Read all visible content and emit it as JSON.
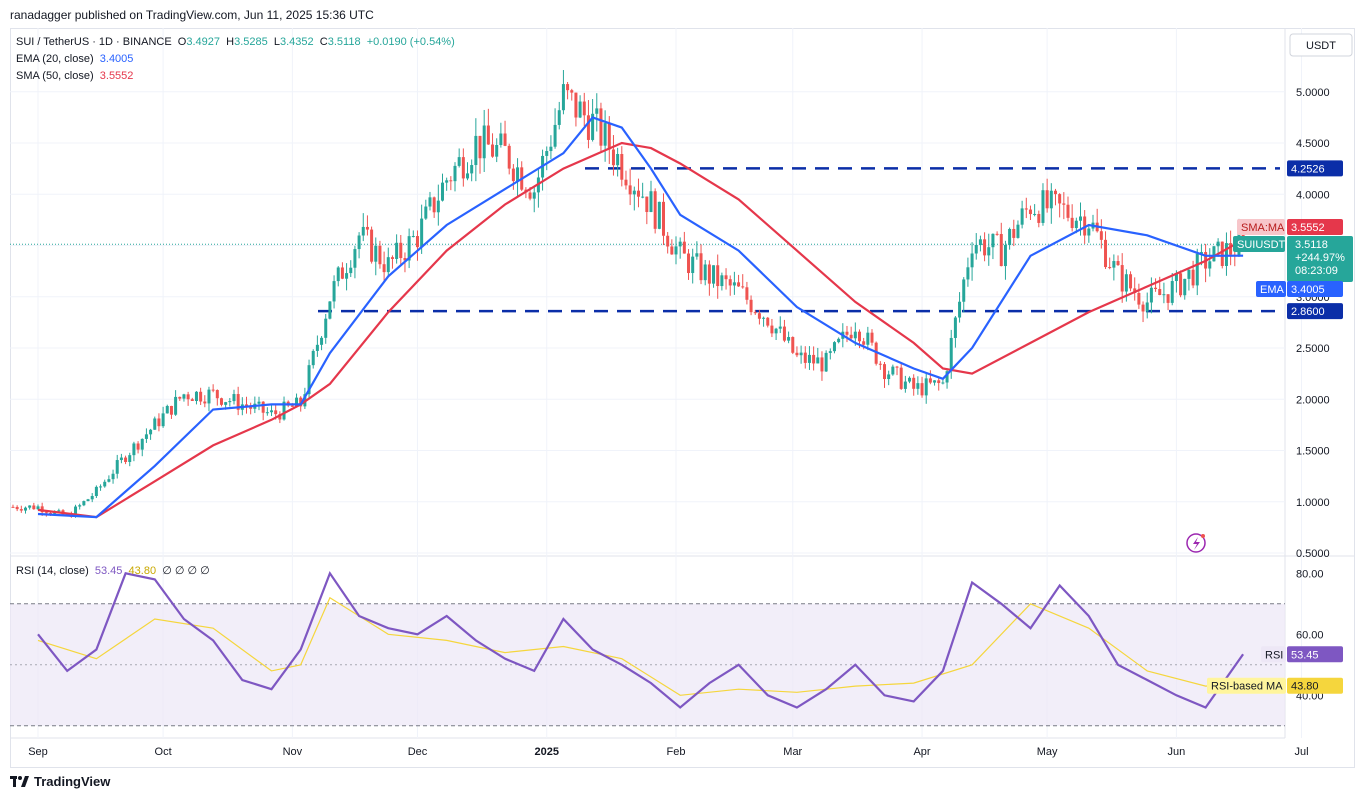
{
  "publisher": "ranadagger published on TradingView.com, Jun 11, 2025 15:36 UTC",
  "legend": {
    "symbol": "SUI / TetherUS · 1D · BINANCE",
    "o_label": "O",
    "o": "3.4927",
    "h_label": "H",
    "h": "3.5285",
    "l_label": "L",
    "l": "3.4352",
    "c_label": "C",
    "c": "3.5118",
    "change": "+0.0190 (+0.54%)",
    "ema_label": "EMA (20, close)",
    "ema_value": "3.4005",
    "sma_label": "SMA (50, close)",
    "sma_value": "3.5552",
    "rsi_label": "RSI (14, close)",
    "rsi_value": "53.45",
    "rsi_ma_value": "43.80",
    "rsi_extra": [
      "∅",
      "∅",
      "∅",
      "∅"
    ]
  },
  "currency": "USDT",
  "price_tags": {
    "sma": {
      "label": "SMA:MA",
      "value": "3.5552"
    },
    "last": {
      "label": "SUIUSDT",
      "value": "3.5118",
      "change": "+244.97%",
      "countdown": "08:23:09"
    },
    "ema": {
      "label": "EMA",
      "value": "3.4005"
    },
    "resistance": "4.2526",
    "support": "2.8600"
  },
  "rsi_tags": {
    "rsi": {
      "label": "RSI",
      "value": "53.45"
    },
    "ma": {
      "label": "RSI-based MA",
      "value": "43.80"
    }
  },
  "brand": "TradingView",
  "colors": {
    "up": "#26a69a",
    "down": "#ef5350",
    "ema": "#2962ff",
    "sma": "#e5374b",
    "level": "#0b2ea8",
    "rsi": "#7e57c2",
    "rsi_ma": "#f5d63d",
    "band": "#ede7f6"
  },
  "chart_data": [
    {
      "type": "candlestick",
      "title": "SUI / TetherUS · 1D · BINANCE",
      "ylabel": "USDT",
      "ylim": [
        0.5,
        5.5
      ],
      "y_ticks": [
        "5.0000",
        "4.5000",
        "4.0000",
        "3.5000",
        "3.0000",
        "2.5000",
        "2.0000",
        "1.5000",
        "1.0000",
        "0.5000"
      ],
      "y_tick_values": [
        5.0,
        4.5,
        4.0,
        3.5,
        3.0,
        2.5,
        2.0,
        1.5,
        1.0,
        0.5
      ],
      "x_ticks": [
        "Sep",
        "Oct",
        "Nov",
        "Dec",
        "2025",
        "Feb",
        "Mar",
        "Apr",
        "May",
        "Jun",
        "Jul"
      ],
      "x_tick_days": [
        0,
        30,
        61,
        91,
        122,
        153,
        181,
        212,
        242,
        273,
        303
      ],
      "x_start": "2024-08-26",
      "horizontal_levels": [
        4.2526,
        2.86
      ],
      "series": [
        {
          "name": "Close",
          "x": [
            0,
            7,
            14,
            21,
            28,
            35,
            42,
            49,
            56,
            63,
            70,
            77,
            84,
            91,
            98,
            105,
            112,
            119,
            126,
            133,
            140,
            147,
            154,
            161,
            168,
            175,
            182,
            189,
            196,
            203,
            210,
            217,
            224,
            231,
            238,
            245,
            252,
            259,
            266,
            273,
            280,
            289
          ],
          "values": [
            0.95,
            0.85,
            1.1,
            1.45,
            1.75,
            2.05,
            2.05,
            1.95,
            1.85,
            1.95,
            3.0,
            3.6,
            3.3,
            3.6,
            4.15,
            4.5,
            4.4,
            4.05,
            4.95,
            4.7,
            4.3,
            3.9,
            3.4,
            3.2,
            3.05,
            2.8,
            2.4,
            2.35,
            2.75,
            2.3,
            2.1,
            2.15,
            3.55,
            3.45,
            3.9,
            3.85,
            3.75,
            3.2,
            2.95,
            3.1,
            3.35,
            3.5118
          ]
        },
        {
          "name": "EMA (20, close)",
          "x": [
            0,
            14,
            28,
            42,
            56,
            63,
            70,
            84,
            98,
            112,
            126,
            133,
            140,
            147,
            154,
            168,
            182,
            196,
            210,
            217,
            224,
            238,
            252,
            266,
            280,
            289
          ],
          "values": [
            0.88,
            0.85,
            1.35,
            1.9,
            1.95,
            1.95,
            2.45,
            3.2,
            3.7,
            4.05,
            4.4,
            4.75,
            4.65,
            4.25,
            3.8,
            3.45,
            2.9,
            2.55,
            2.3,
            2.2,
            2.5,
            3.4,
            3.7,
            3.6,
            3.4,
            3.4005
          ]
        },
        {
          "name": "SMA (50, close)",
          "x": [
            0,
            14,
            28,
            42,
            56,
            63,
            70,
            84,
            98,
            112,
            126,
            140,
            147,
            154,
            168,
            182,
            196,
            210,
            217,
            224,
            238,
            252,
            266,
            280,
            289
          ],
          "values": [
            0.92,
            0.85,
            1.2,
            1.55,
            1.8,
            1.95,
            2.15,
            2.85,
            3.45,
            3.9,
            4.25,
            4.5,
            4.45,
            4.3,
            3.95,
            3.45,
            2.95,
            2.55,
            2.3,
            2.25,
            2.55,
            2.85,
            3.1,
            3.35,
            3.5552
          ]
        }
      ]
    },
    {
      "type": "line",
      "title": "RSI (14, close)",
      "ylim": [
        26,
        85
      ],
      "y_ticks": [
        "80.00",
        "60.00",
        "40.00"
      ],
      "y_tick_values": [
        80,
        60,
        40
      ],
      "bands": [
        70,
        30
      ],
      "midline": 50,
      "series": [
        {
          "name": "RSI",
          "x": [
            0,
            7,
            14,
            21,
            28,
            35,
            42,
            49,
            56,
            63,
            70,
            77,
            84,
            91,
            98,
            105,
            112,
            119,
            126,
            133,
            140,
            147,
            154,
            161,
            168,
            175,
            182,
            189,
            196,
            203,
            210,
            217,
            224,
            231,
            238,
            245,
            252,
            259,
            266,
            273,
            280,
            289
          ],
          "values": [
            60,
            48,
            55,
            80,
            78,
            65,
            58,
            45,
            42,
            55,
            80,
            66,
            62,
            60,
            66,
            58,
            52,
            48,
            65,
            55,
            50,
            44,
            36,
            44,
            50,
            40,
            36,
            42,
            50,
            40,
            38,
            48,
            77,
            70,
            62,
            76,
            66,
            50,
            45,
            40,
            36,
            53.45
          ]
        },
        {
          "name": "RSI-based MA",
          "x": [
            0,
            14,
            28,
            42,
            56,
            63,
            70,
            84,
            98,
            112,
            126,
            140,
            154,
            168,
            182,
            196,
            210,
            224,
            238,
            252,
            266,
            280,
            289
          ],
          "values": [
            58,
            52,
            65,
            62,
            48,
            50,
            72,
            60,
            58,
            54,
            56,
            52,
            40,
            42,
            41,
            43,
            44,
            50,
            70,
            62,
            48,
            43,
            43.8
          ]
        }
      ]
    }
  ]
}
